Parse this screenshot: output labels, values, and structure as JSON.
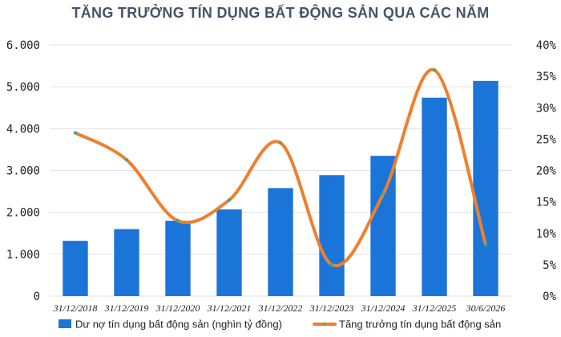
{
  "colors": {
    "bar": "#1b74d8",
    "line": "#ef7f2d",
    "marker": "#3fae7a",
    "title": "#44546a",
    "grid": "#e3e3e3"
  },
  "chart_data": {
    "type": "bar",
    "title": "TĂNG TRƯỞNG TÍN DỤNG BẤT ĐỘNG SẢN QUA CÁC NĂM",
    "categories": [
      "31/12/2018",
      "31/12/2019",
      "31/12/2020",
      "31/12/2021",
      "31/12/2022",
      "31/12/2023",
      "31/12/2024",
      "31/12/2025",
      "30/6/2026"
    ],
    "series": [
      {
        "name": "Dư nợ tín dụng bất động sản (nghìn tỷ đồng)",
        "type": "bar",
        "axis": "left",
        "values": [
          1320,
          1600,
          1800,
          2070,
          2580,
          2890,
          3350,
          4740,
          5140
        ]
      },
      {
        "name": "Tăng trưởng tín dụng bất động sản",
        "type": "line",
        "smooth": true,
        "axis": "right",
        "values": [
          26,
          21.7,
          12,
          15.3,
          24.4,
          5,
          16.2,
          36,
          8.2
        ]
      }
    ],
    "y_left": {
      "min": 0,
      "max": 6000,
      "step": 1000,
      "tick_labels": [
        "0",
        "1.000",
        "2.000",
        "3.000",
        "4.000",
        "5.000",
        "6.000"
      ]
    },
    "y_right": {
      "min": 0,
      "max": 40,
      "step": 5,
      "tick_labels": [
        "0%",
        "5%",
        "10%",
        "15%",
        "20%",
        "25%",
        "30%",
        "35%",
        "40%"
      ]
    },
    "grid": true,
    "legend_position": "bottom"
  }
}
